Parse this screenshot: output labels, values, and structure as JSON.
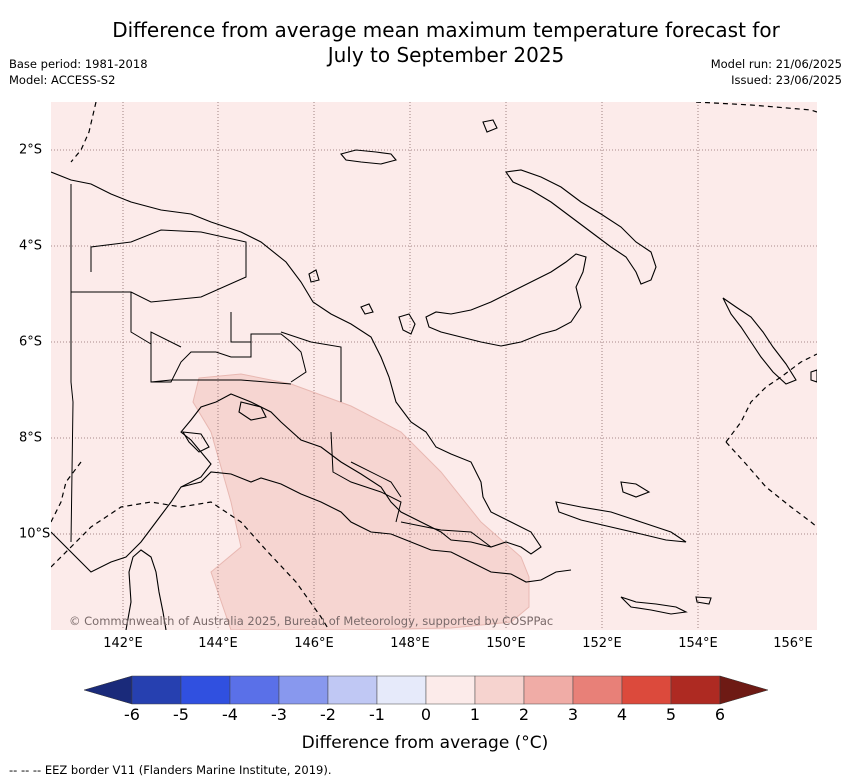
{
  "title_line1": "Difference from average mean maximum temperature forecast for",
  "title_line2": "July to September 2025",
  "base_period": "Base period: 1981-2018",
  "model": "Model: ACCESS-S2",
  "model_run": "Model run: 21/06/2025",
  "issued": "Issued: 23/06/2025",
  "copyright": "© Commonwealth of Australia 2025, Bureau of Meteorology, supported by COSPPac",
  "x_ticks": [
    "142°E",
    "144°E",
    "146°E",
    "148°E",
    "150°E",
    "152°E",
    "154°E",
    "156°E"
  ],
  "y_ticks": [
    "2°S",
    "4°S",
    "6°S",
    "8°S",
    "10°S"
  ],
  "colorbar": {
    "labels": [
      "-6",
      "-5",
      "-4",
      "-3",
      "-2",
      "-1",
      "0",
      "1",
      "2",
      "3",
      "4",
      "5",
      "6"
    ],
    "under_color": "#1a2a7a",
    "over_color": "#6e1a14",
    "colors": [
      "#2640b0",
      "#3050e0",
      "#5a70e8",
      "#8898ee",
      "#c0c8f4",
      "#e6eafa",
      "#fcebea",
      "#f6d3cf",
      "#f0aca6",
      "#e88078",
      "#dc4a3c",
      "#ae2a22"
    ],
    "title": "Difference from average (°C)"
  },
  "footnote": "-- -- -- EEZ border V11 (Flanders Marine Institute, 2019).",
  "map_colors": {
    "background": "#fcebea",
    "warmer_region": "#f6d5d1"
  }
}
